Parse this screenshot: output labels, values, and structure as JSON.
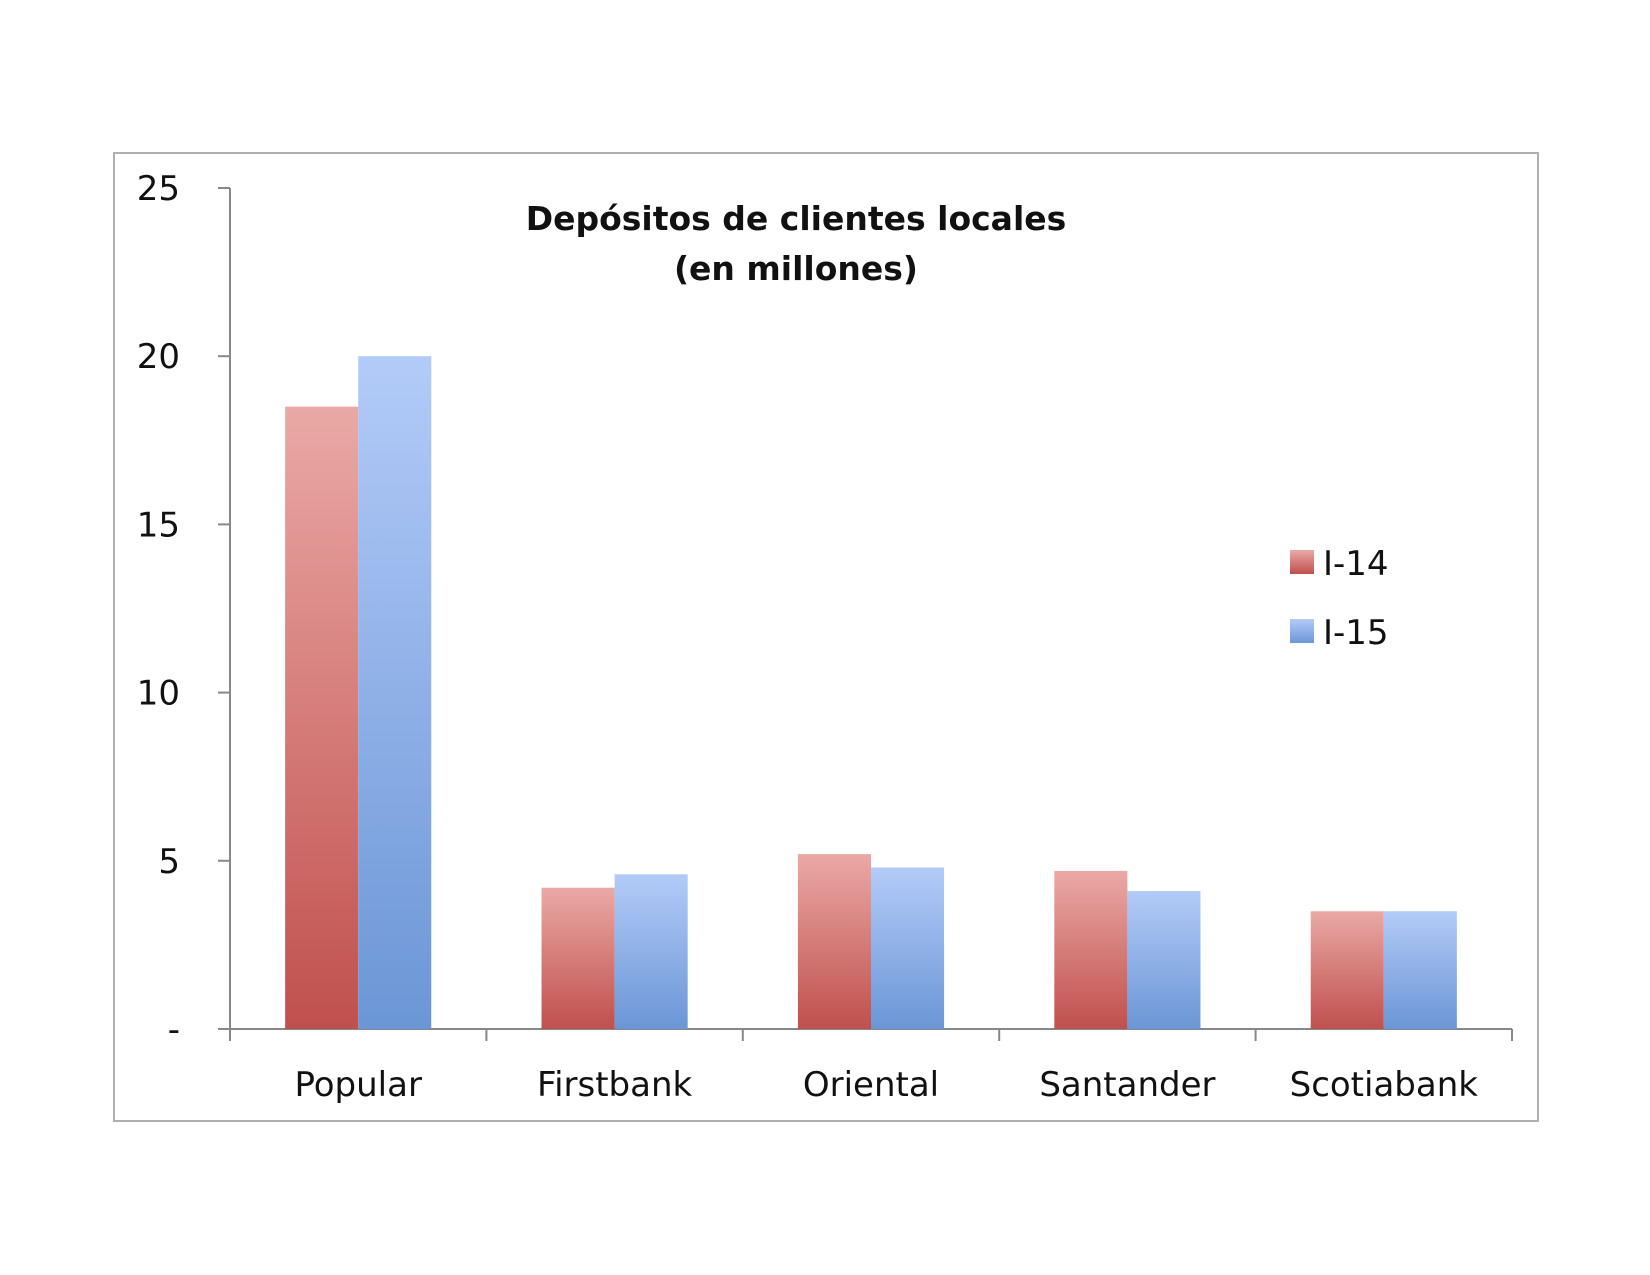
{
  "chart_data": {
    "type": "bar",
    "title_line1": "Depósitos de clientes locales",
    "title_line2": "(en millones)",
    "categories": [
      "Popular",
      "Firstbank",
      "Oriental",
      "Santander",
      "Scotiabank"
    ],
    "series": [
      {
        "name": "I-14",
        "values": [
          18.5,
          4.2,
          5.2,
          4.7,
          3.5
        ],
        "color": "#c0504d",
        "color_light": "#eaa9a6"
      },
      {
        "name": "I-15",
        "values": [
          20.0,
          4.6,
          4.8,
          4.1,
          3.5
        ],
        "color": "#6b96d6",
        "color_light": "#b3cbf8"
      }
    ],
    "yticks": [
      {
        "value": 0,
        "label": "-"
      },
      {
        "value": 5,
        "label": "5"
      },
      {
        "value": 10,
        "label": "10"
      },
      {
        "value": 15,
        "label": "15"
      },
      {
        "value": 20,
        "label": "20"
      },
      {
        "value": 25,
        "label": "25"
      }
    ],
    "ylim": [
      0,
      25
    ],
    "grid": false,
    "legend_position": "right"
  }
}
